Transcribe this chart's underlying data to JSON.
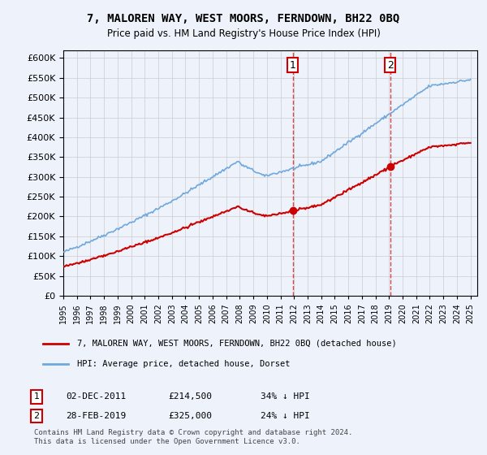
{
  "title": "7, MALOREN WAY, WEST MOORS, FERNDOWN, BH22 0BQ",
  "subtitle": "Price paid vs. HM Land Registry's House Price Index (HPI)",
  "ylim": [
    0,
    620000
  ],
  "yticks": [
    0,
    50000,
    100000,
    150000,
    200000,
    250000,
    300000,
    350000,
    400000,
    450000,
    500000,
    550000,
    600000
  ],
  "legend_line1": "7, MALOREN WAY, WEST MOORS, FERNDOWN, BH22 0BQ (detached house)",
  "legend_line2": "HPI: Average price, detached house, Dorset",
  "sale1_date": "02-DEC-2011",
  "sale1_price": "£214,500",
  "sale1_pct": "34% ↓ HPI",
  "sale1_year": 2011.917,
  "sale1_value": 214500,
  "sale2_date": "28-FEB-2019",
  "sale2_price": "£325,000",
  "sale2_pct": "24% ↓ HPI",
  "sale2_year": 2019.083,
  "sale2_value": 325000,
  "footer": "Contains HM Land Registry data © Crown copyright and database right 2024.\nThis data is licensed under the Open Government Licence v3.0.",
  "hpi_color": "#6fa8dc",
  "price_color": "#cc0000",
  "annotation_color": "#cc0000",
  "bg_color": "#eef2fb",
  "grid_color": "#cccccc"
}
